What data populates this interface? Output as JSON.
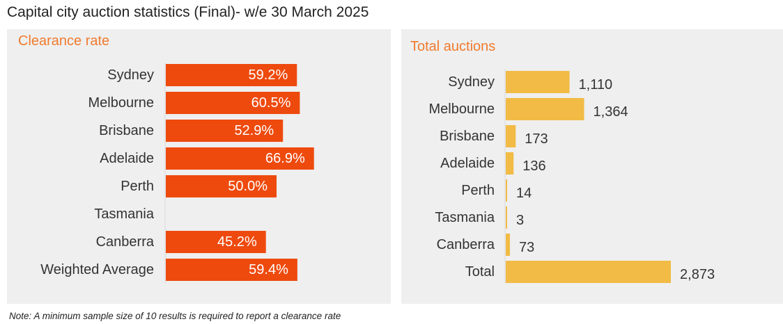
{
  "title": "Capital city auction statistics (Final)- w/e 30 March 2025",
  "note": "Note: A minimum sample size of 10 results is required to report a clearance rate",
  "colors": {
    "clearance_bar": "#ee4a0e",
    "auction_bar": "#f1bb45",
    "panel_title": "#ef7b2f",
    "panel_bg": "#efefef"
  },
  "chart_data": [
    {
      "type": "bar",
      "orientation": "horizontal",
      "title": "Clearance rate",
      "categories": [
        "Sydney",
        "Melbourne",
        "Brisbane",
        "Adelaide",
        "Perth",
        "Tasmania",
        "Canberra",
        "Weighted Average"
      ],
      "values": [
        59.2,
        60.5,
        52.9,
        66.9,
        50.0,
        null,
        45.2,
        59.4
      ],
      "labels": [
        "59.2%",
        "60.5%",
        "52.9%",
        "66.9%",
        "50.0%",
        "",
        "45.2%",
        "59.4%"
      ],
      "xlim": [
        0,
        100
      ],
      "grid": false,
      "legend": false
    },
    {
      "type": "bar",
      "orientation": "horizontal",
      "title": "Total auctions",
      "categories": [
        "Sydney",
        "Melbourne",
        "Brisbane",
        "Adelaide",
        "Perth",
        "Tasmania",
        "Canberra",
        "Total"
      ],
      "values": [
        1110,
        1364,
        173,
        136,
        14,
        3,
        73,
        2873
      ],
      "labels": [
        "1,110",
        "1,364",
        "173",
        "136",
        "14",
        "3",
        "73",
        "2,873"
      ],
      "xlim": [
        0,
        5450
      ],
      "grid": false,
      "legend": false
    }
  ]
}
